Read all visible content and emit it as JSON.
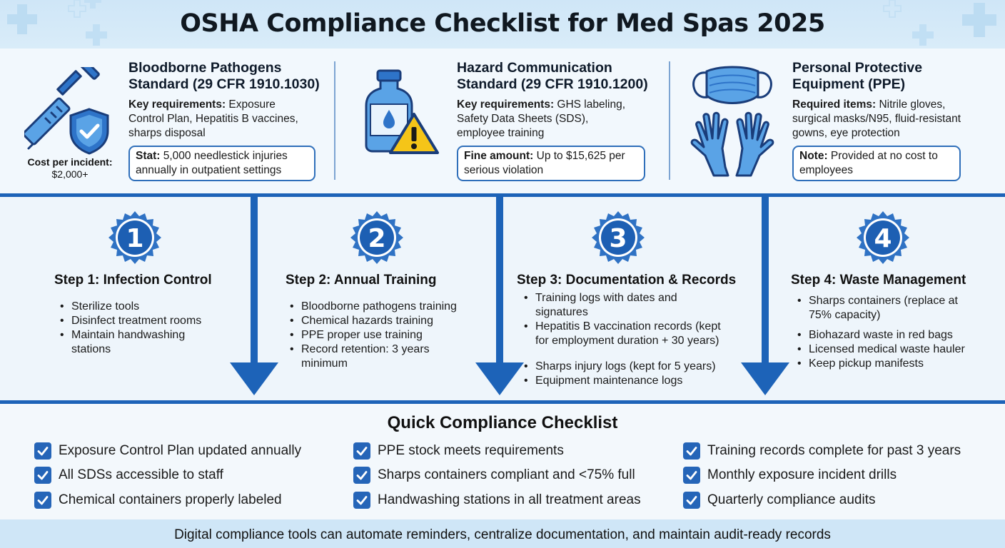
{
  "header": {
    "title": "OSHA Compliance Checklist for Med Spas 2025"
  },
  "standards": [
    {
      "title_lines": [
        "Bloodborne Pathogens",
        "Standard (29 CFR 1910.1030)"
      ],
      "req_label": "Key requirements:",
      "req_lines": [
        " Exposure",
        "Control Plan, Hepatitis B vaccines,",
        "sharps disposal"
      ],
      "callout_label": "Stat:",
      "callout_lines": [
        " 5,000 needlestick injuries",
        "annually in outpatient settings"
      ],
      "cost_label": "Cost per incident:",
      "cost_value": "$2,000+"
    },
    {
      "title_lines": [
        "Hazard Communication",
        "Standard (29 CFR 1910.1200)"
      ],
      "req_label": "Key requirements:",
      "req_lines": [
        " GHS labeling,",
        "Safety Data Sheets (SDS),",
        "employee training"
      ],
      "callout_label": "Fine amount:",
      "callout_lines": [
        " Up to $15,625 per",
        "serious violation"
      ]
    },
    {
      "title_lines": [
        "Personal Protective",
        "Equipment (PPE)"
      ],
      "req_label": "Required items:",
      "req_lines": [
        " Nitrile gloves,",
        "surgical masks/N95, fluid-resistant",
        "gowns, eye protection"
      ],
      "callout_label": "Note:",
      "callout_lines": [
        " Provided at no cost to",
        "employees"
      ]
    }
  ],
  "steps": [
    {
      "number": "1",
      "title": "Step 1: Infection Control",
      "items": [
        [
          "Sterilize tools"
        ],
        [
          "Disinfect treatment rooms"
        ],
        [
          "Maintain handwashing",
          "stations"
        ]
      ]
    },
    {
      "number": "2",
      "title": "Step 2: Annual Training",
      "items": [
        [
          "Bloodborne pathogens training"
        ],
        [
          "Chemical hazards training"
        ],
        [
          "PPE proper use training"
        ],
        [
          "Record retention: 3 years",
          "minimum"
        ]
      ]
    },
    {
      "number": "3",
      "title": "Step 3: Documentation & Records",
      "items": [
        [
          "Training logs with dates and",
          "signatures"
        ],
        [
          "Hepatitis B vaccination records (kept",
          "for employment duration + 30 years)"
        ],
        [
          "Sharps injury logs (kept for 5 years)"
        ],
        [
          "Equipment maintenance logs"
        ]
      ]
    },
    {
      "number": "4",
      "title": "Step 4: Waste Management",
      "items": [
        [
          "Sharps containers (replace at",
          "75% capacity)"
        ],
        [
          "Biohazard waste in red bags"
        ],
        [
          "Licensed medical waste hauler"
        ],
        [
          "Keep pickup manifests"
        ]
      ]
    }
  ],
  "checklist": {
    "title": "Quick Compliance Checklist",
    "columns": [
      [
        "Exposure Control Plan updated annually",
        "All SDSs accessible to staff",
        "Chemical containers properly labeled"
      ],
      [
        "PPE stock meets requirements",
        "Sharps containers compliant and <75% full",
        "Handwashing stations in all treatment areas"
      ],
      [
        "Training records complete for past 3 years",
        "Monthly exposure incident drills",
        "Quarterly compliance audits"
      ]
    ]
  },
  "footer": {
    "text": "Digital compliance tools can automate reminders, centralize documentation, and maintain audit-ready records"
  },
  "colors": {
    "primary": "#1d63b8",
    "check": "#2565b8",
    "header_bg": "#cfe6f7",
    "warning": "#f5c518"
  },
  "icons": [
    "syringe-icon",
    "shield-check-icon",
    "chemical-bottle-icon",
    "warning-triangle-icon",
    "face-mask-icon",
    "gloves-icon",
    "check-icon",
    "down-arrow-icon"
  ]
}
